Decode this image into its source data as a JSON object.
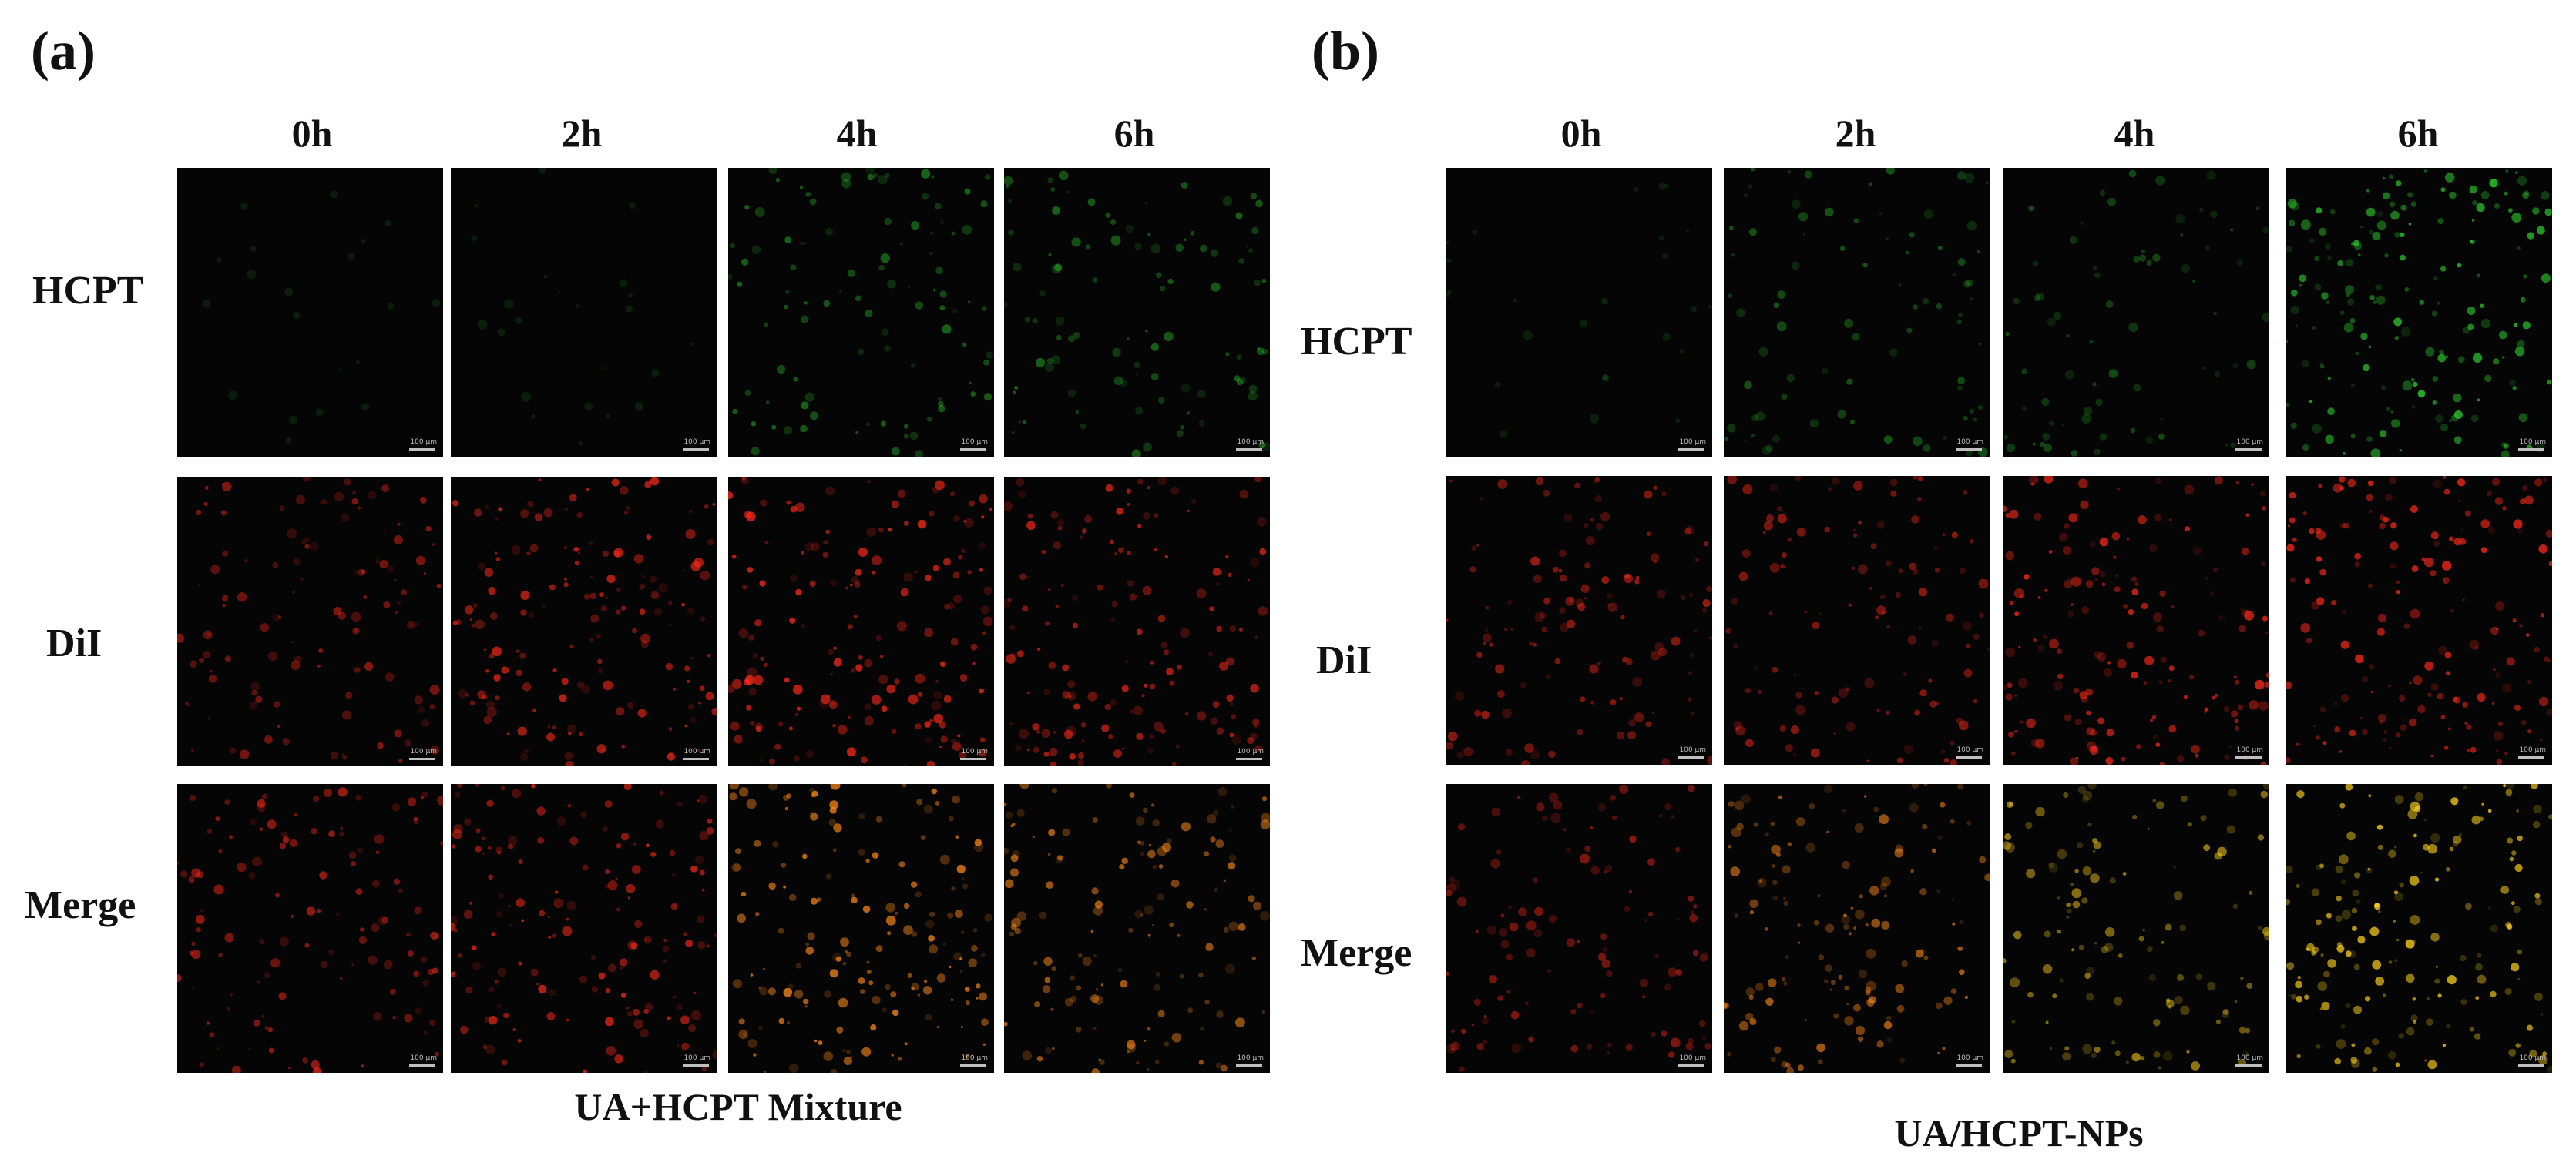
{
  "figure": {
    "panels": [
      {
        "letter": "(a)",
        "caption": "UA+HCPT Mixture",
        "columns": [
          "0h",
          "2h",
          "4h",
          "6h"
        ],
        "rows": [
          "HCPT",
          "DiI",
          "Merge"
        ],
        "signal": {
          "HCPT": [
            0.0,
            0.02,
            0.45,
            0.45
          ],
          "DiI": [
            0.55,
            0.8,
            0.85,
            0.75
          ],
          "Merge": [
            0.6,
            0.8,
            0.85,
            0.7
          ]
        },
        "merge_hue": [
          "red",
          "red",
          "orange",
          "orange"
        ]
      },
      {
        "letter": "(b)",
        "caption": "UA/HCPT-NPs",
        "columns": [
          "0h",
          "2h",
          "4h",
          "6h"
        ],
        "rows": [
          "HCPT",
          "DiI",
          "Merge"
        ],
        "signal": {
          "HCPT": [
            0.03,
            0.35,
            0.3,
            0.9
          ],
          "DiI": [
            0.6,
            0.55,
            0.85,
            0.85
          ],
          "Merge": [
            0.55,
            0.7,
            0.6,
            0.9
          ]
        },
        "merge_hue": [
          "red",
          "orange",
          "yellow",
          "yellow"
        ]
      }
    ],
    "scale_bar_label": "100 µm",
    "colors": {
      "HCPT": "#2fd12f",
      "DiI": "#ff2a1a",
      "orange": "#ff8a1a",
      "yellow": "#ffd21a",
      "background": "#050505"
    }
  }
}
